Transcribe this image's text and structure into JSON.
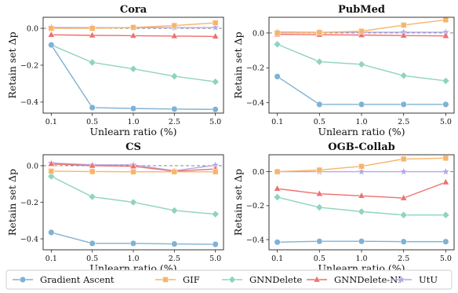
{
  "chart_data": [
    {
      "type": "line",
      "title": "Cora",
      "xlabel": "Unlearn ratio (%)",
      "ylabel": "Retain set Δp",
      "x_ticks": [
        "0.1",
        "0.5",
        "1.0",
        "2.5",
        "5.0"
      ],
      "y_ticks": [
        "0.0",
        "−0.2",
        "−0.4"
      ],
      "ylim": [
        -0.46,
        0.06
      ],
      "reference_line": 0.0,
      "series": [
        {
          "name": "Gradient Ascent",
          "values": [
            -0.09,
            -0.43,
            -0.435,
            -0.438,
            -0.44
          ]
        },
        {
          "name": "GIF",
          "values": [
            0.0,
            0.0,
            0.005,
            0.015,
            0.03
          ]
        },
        {
          "name": "GNNDelete",
          "values": [
            -0.09,
            -0.185,
            -0.22,
            -0.26,
            -0.29
          ]
        },
        {
          "name": "GNNDelete-NI",
          "values": [
            -0.035,
            -0.038,
            -0.04,
            -0.042,
            -0.044
          ]
        },
        {
          "name": "UtU",
          "values": [
            0.005,
            0.004,
            0.004,
            0.004,
            0.004
          ]
        }
      ]
    },
    {
      "type": "line",
      "title": "PubMed",
      "xlabel": "Unlearn ratio (%)",
      "ylabel": "Retain set Δp",
      "x_ticks": [
        "0.1",
        "0.5",
        "1.0",
        "2.5",
        "5.0"
      ],
      "y_ticks": [
        "0.0",
        "−0.2",
        "−0.4"
      ],
      "ylim": [
        -0.46,
        0.09
      ],
      "reference_line": 0.0,
      "series": [
        {
          "name": "Gradient Ascent",
          "values": [
            -0.25,
            -0.41,
            -0.41,
            -0.41,
            -0.41
          ]
        },
        {
          "name": "GIF",
          "values": [
            0.0,
            0.003,
            0.01,
            0.045,
            0.075
          ]
        },
        {
          "name": "GNNDelete",
          "values": [
            -0.065,
            -0.165,
            -0.18,
            -0.245,
            -0.275
          ]
        },
        {
          "name": "GNNDelete-NI",
          "values": [
            -0.008,
            -0.01,
            -0.012,
            -0.015,
            -0.017
          ]
        },
        {
          "name": "UtU",
          "values": [
            0.005,
            0.004,
            0.004,
            0.004,
            0.004
          ]
        }
      ]
    },
    {
      "type": "line",
      "title": "CS",
      "xlabel": "Unlearn ratio (%)",
      "ylabel": "Retain set Δp",
      "x_ticks": [
        "0.1",
        "0.5",
        "1.0",
        "2.5",
        "5.0"
      ],
      "y_ticks": [
        "0.0",
        "−0.2",
        "−0.4"
      ],
      "ylim": [
        -0.46,
        0.06
      ],
      "reference_line": 0.0,
      "series": [
        {
          "name": "Gradient Ascent",
          "values": [
            -0.365,
            -0.425,
            -0.425,
            -0.428,
            -0.43
          ]
        },
        {
          "name": "GIF",
          "values": [
            -0.03,
            -0.032,
            -0.033,
            -0.033,
            -0.033
          ]
        },
        {
          "name": "GNNDelete",
          "values": [
            -0.058,
            -0.17,
            -0.2,
            -0.245,
            -0.265
          ]
        },
        {
          "name": "GNNDelete-NI",
          "values": [
            0.01,
            0.0,
            -0.003,
            -0.03,
            -0.018
          ]
        },
        {
          "name": "UtU",
          "values": [
            0.015,
            0.005,
            0.005,
            -0.028,
            0.003
          ]
        }
      ]
    },
    {
      "type": "line",
      "title": "OGB-Collab",
      "xlabel": "Unlearn ratio (%)",
      "ylabel": "Retain set Δp",
      "x_ticks": [
        "0.1",
        "0.5",
        "1.0",
        "2.5",
        "5.0"
      ],
      "y_ticks": [
        "0.0",
        "−0.2",
        "−0.4"
      ],
      "ylim": [
        -0.46,
        0.1
      ],
      "reference_line": 0.0,
      "series": [
        {
          "name": "Gradient Ascent",
          "values": [
            -0.415,
            -0.41,
            -0.41,
            -0.412,
            -0.412
          ]
        },
        {
          "name": "GIF",
          "values": [
            0.0,
            0.01,
            0.032,
            0.075,
            0.08
          ]
        },
        {
          "name": "GNNDelete",
          "values": [
            -0.15,
            -0.21,
            -0.235,
            -0.255,
            -0.255
          ]
        },
        {
          "name": "GNNDelete-NI",
          "values": [
            -0.1,
            -0.13,
            -0.142,
            -0.155,
            -0.062
          ]
        },
        {
          "name": "UtU",
          "values": [
            0.0,
            0.0,
            0.0,
            0.0,
            0.0
          ]
        }
      ]
    }
  ],
  "legend": {
    "placement": "bottom",
    "items": [
      {
        "name": "Gradient Ascent",
        "color": "#7fb2d5",
        "marker": "circle"
      },
      {
        "name": "GIF",
        "color": "#f7b56a",
        "marker": "square"
      },
      {
        "name": "GNNDelete",
        "color": "#8fd3c1",
        "marker": "diamond"
      },
      {
        "name": "GNNDelete-NI",
        "color": "#ef6f6c",
        "marker": "triangle"
      },
      {
        "name": "UtU",
        "color": "#b4a7e6",
        "marker": "star"
      }
    ]
  }
}
